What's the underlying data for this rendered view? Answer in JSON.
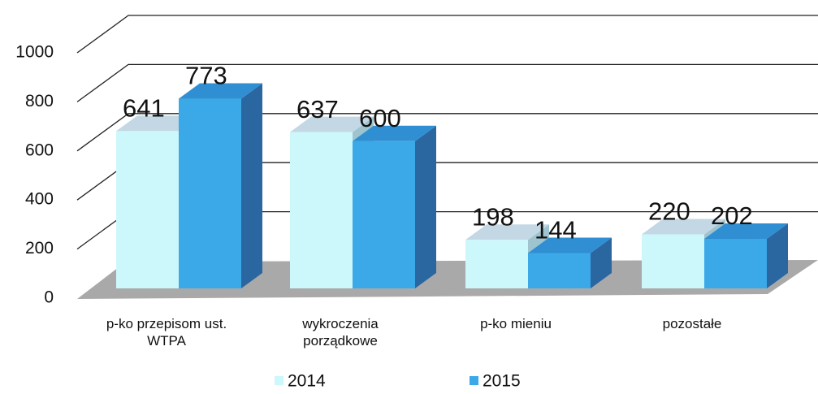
{
  "chart_data": {
    "type": "bar3d",
    "categories": [
      "p-ko przepisom ust. WTPA",
      "wykroczenia porządkowe",
      "p-ko mieniu",
      "pozostałe"
    ],
    "series": [
      {
        "name": "2014",
        "color": "#cdf8fb",
        "values": [
          641,
          637,
          198,
          220
        ]
      },
      {
        "name": "2015",
        "color": "#3ba8e8",
        "values": [
          773,
          600,
          144,
          202
        ]
      }
    ],
    "ylim": [
      0,
      1000
    ],
    "yticks": [
      0,
      200,
      400,
      600,
      800,
      1000
    ],
    "grid": true
  }
}
